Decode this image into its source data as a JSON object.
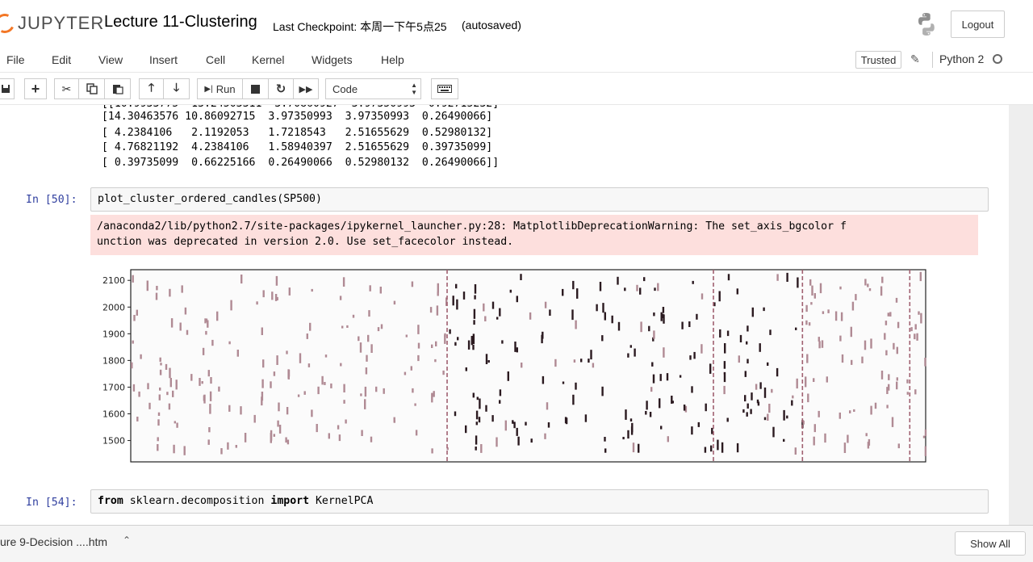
{
  "header": {
    "logo_text": "JUPYTER",
    "notebook_title": "Lecture 11-Clustering",
    "checkpoint": "Last Checkpoint: 本周一下午5点25",
    "autosaved": "(autosaved)",
    "logout_label": "Logout"
  },
  "menubar": {
    "items": [
      "File",
      "Edit",
      "View",
      "Insert",
      "Cell",
      "Kernel",
      "Widgets",
      "Help"
    ],
    "trusted_label": "Trusted",
    "kernel_name": "Python 2"
  },
  "toolbar": {
    "run_label": "Run",
    "cell_type": "Code"
  },
  "cells": {
    "output_matrix": [
      " [14.30463576 10.86092715  3.97350993  3.97350993  0.26490066]",
      " [ 4.2384106   2.1192053   1.7218543   2.51655629  0.52980132]",
      " [ 4.76821192  4.2384106   1.58940397  2.51655629  0.39735099]",
      " [ 0.39735099  0.66225166  0.26490066  0.52980132  0.26490066]]"
    ],
    "cell50_prompt": "In [50]:",
    "cell50_code": "plot_cluster_ordered_candles(SP500)",
    "warning_line1": "/anaconda2/lib/python2.7/site-packages/ipykernel_launcher.py:28: MatplotlibDeprecationWarning: The set_axis_bgcolor f",
    "warning_line2": "unction was deprecated in version 2.0. Use set_facecolor instead.",
    "cell54_prompt": "In [54]:",
    "cell54_code_from": "from",
    "cell54_code_module": " sklearn.decomposition ",
    "cell54_code_import": "import",
    "cell54_code_name": " KernelPCA"
  },
  "chart_data": {
    "type": "candlestick-scatter",
    "yticks": [
      1500,
      1600,
      1700,
      1800,
      1900,
      2000,
      2100
    ],
    "ylim": [
      1420,
      2140
    ],
    "cluster_boundaries_fraction": [
      0.398,
      0.733,
      0.845,
      0.98
    ],
    "colors": {
      "light": "#b08a94",
      "dark": "#2b1a20",
      "divider": "#a06070"
    }
  },
  "download_bar": {
    "file_name": "ure 9-Decision ....htm",
    "show_all_label": "Show All"
  },
  "colors": {
    "prompt_blue": "#303f9f",
    "warning_bg": "#fddfdd",
    "jupyter_orange": "#f37726"
  }
}
